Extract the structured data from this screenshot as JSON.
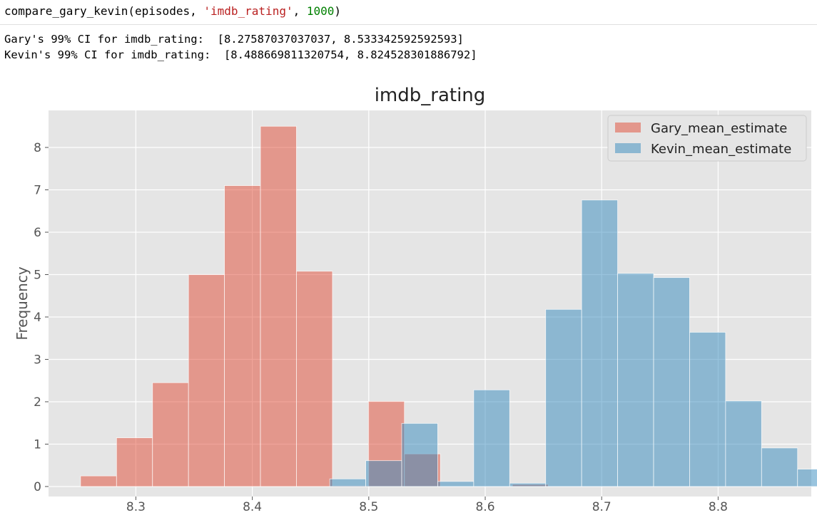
{
  "cell": {
    "code": {
      "func": "compare_gary_kevin(episodes, ",
      "str_arg": "'imdb_rating'",
      "sep": ", ",
      "num_arg": "1000",
      "close": ")"
    },
    "output_lines": [
      "Gary's 99% CI for imdb_rating:  [8.27587037037037, 8.533342592592593]",
      "Kevin's 99% CI for imdb_rating:  [8.488669811320754, 8.824528301886792]"
    ]
  },
  "chart_data": {
    "type": "bar",
    "title": "imdb_rating",
    "xlabel": "",
    "ylabel": "Frequency",
    "xlim": [
      8.225,
      8.88
    ],
    "ylim": [
      0,
      9.0
    ],
    "xticks": [
      "8.3",
      "8.4",
      "8.5",
      "8.6",
      "8.7",
      "8.8"
    ],
    "yticks": [
      "0",
      "1",
      "2",
      "3",
      "4",
      "5",
      "6",
      "7",
      "8"
    ],
    "grid": true,
    "legend_position": "top-right",
    "series": [
      {
        "name": "Gary_mean_estimate",
        "color": "#e24a33",
        "bin_start": 8.2525,
        "bin_width": 0.0309,
        "values": [
          0.25,
          1.15,
          2.45,
          5.0,
          7.1,
          8.5,
          5.08,
          0.02,
          2.01,
          0.77,
          0,
          0,
          0.05
        ]
      },
      {
        "name": "Kevin_mean_estimate",
        "color": "#348abd",
        "bin_start": 8.4665,
        "bin_width": 0.0309,
        "values": [
          0.18,
          0.61,
          1.49,
          0.12,
          2.28,
          0.08,
          4.18,
          6.76,
          5.03,
          4.93,
          3.64,
          2.02,
          0.91,
          0.41,
          0.06
        ]
      }
    ]
  }
}
